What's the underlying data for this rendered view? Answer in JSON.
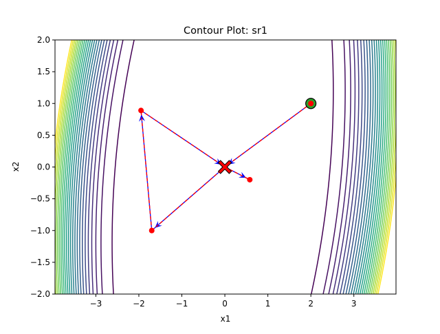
{
  "chart_data": {
    "type": "contour",
    "title": "Contour Plot: sr1",
    "xlabel": "x1",
    "ylabel": "x2",
    "xlim": [
      -3.95,
      3.98
    ],
    "ylim": [
      -2.0,
      2.0
    ],
    "xticks": [
      -3,
      -2,
      -1,
      0,
      1,
      2,
      3
    ],
    "xtick_labels": [
      "−3",
      "−2",
      "−1",
      "0",
      "1",
      "2",
      "3"
    ],
    "yticks": [
      -2.0,
      -1.5,
      -1.0,
      -0.5,
      0.0,
      0.5,
      1.0,
      1.5,
      2.0
    ],
    "ytick_labels": [
      "−2.0",
      "−1.5",
      "−1.0",
      "−0.5",
      "0.0",
      "0.5",
      "1.0",
      "1.5",
      "2.0"
    ],
    "colormap": "viridis",
    "path": {
      "color": "#ff0000",
      "arrow_color": "#0000ff",
      "points": [
        {
          "x": 2.0,
          "y": 1.0
        },
        {
          "x": 0.0,
          "y": 0.0
        },
        {
          "x": -1.7,
          "y": -1.0
        },
        {
          "x": -1.95,
          "y": 0.89
        },
        {
          "x": 0.0,
          "y": 0.0
        },
        {
          "x": 0.58,
          "y": -0.2
        }
      ]
    },
    "start_point": {
      "x": 2.0,
      "y": 1.0,
      "marker": "circle",
      "color": "#2ca02c"
    },
    "optimum": {
      "x": 0.0,
      "y": 0.0,
      "marker": "X",
      "color": "#ff0000"
    }
  }
}
